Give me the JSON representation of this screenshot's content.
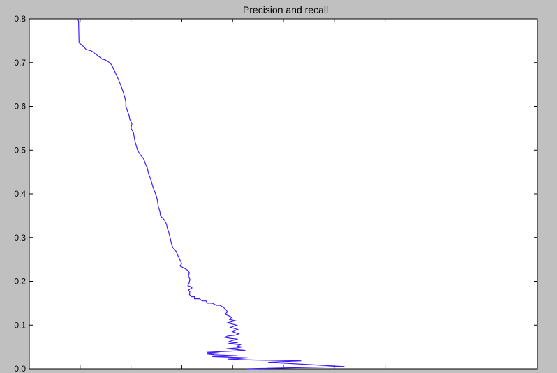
{
  "chart_data": {
    "type": "line",
    "title": "Precision and recall",
    "xlabel": "",
    "ylabel": "",
    "xlim": [
      0,
      1
    ],
    "ylim": [
      0,
      0.8
    ],
    "x_ticks": [
      0.1,
      0.2,
      0.3,
      0.4,
      0.5,
      0.6,
      0.7
    ],
    "y_ticks": [
      0.0,
      0.1,
      0.2,
      0.3,
      0.4,
      0.5,
      0.6,
      0.7,
      0.8
    ],
    "y_tick_labels": [
      "0.0",
      "0.1",
      "0.2",
      "0.3",
      "0.4",
      "0.5",
      "0.6",
      "0.7",
      "0.8"
    ],
    "grid": false,
    "line_color": "#3b1cff",
    "series": [
      {
        "x": [
          0.095,
          0.097,
          0.098,
          0.104,
          0.112,
          0.122,
          0.13,
          0.138,
          0.143,
          0.15,
          0.158,
          0.162,
          0.166,
          0.17,
          0.176,
          0.181,
          0.185,
          0.188,
          0.19,
          0.19,
          0.193,
          0.196,
          0.198,
          0.202,
          0.2,
          0.205,
          0.208,
          0.213,
          0.218,
          0.225,
          0.228,
          0.232,
          0.235,
          0.24,
          0.242,
          0.245,
          0.25,
          0.252,
          0.254,
          0.257,
          0.258,
          0.262,
          0.266,
          0.27,
          0.272,
          0.275,
          0.278,
          0.28,
          0.282,
          0.288,
          0.292,
          0.296,
          0.3,
          0.296,
          0.305,
          0.312,
          0.315,
          0.313,
          0.316,
          0.315,
          0.312,
          0.317,
          0.32,
          0.313,
          0.316,
          0.315,
          0.319,
          0.325,
          0.325,
          0.335,
          0.34,
          0.348,
          0.35,
          0.36,
          0.368,
          0.375,
          0.382,
          0.387,
          0.39,
          0.385,
          0.395,
          0.398,
          0.394,
          0.405,
          0.39,
          0.408,
          0.396,
          0.41,
          0.4,
          0.412,
          0.405,
          0.39,
          0.385,
          0.395,
          0.41,
          0.4,
          0.392,
          0.41,
          0.392,
          0.415,
          0.41,
          0.418,
          0.41,
          0.388,
          0.4,
          0.425,
          0.39,
          0.35,
          0.375,
          0.35,
          0.365,
          0.41,
          0.36,
          0.43,
          0.41,
          0.39,
          0.44,
          0.535,
          0.47,
          0.62,
          0.428
        ],
        "y": [
          0.8,
          0.795,
          0.745,
          0.74,
          0.73,
          0.727,
          0.72,
          0.713,
          0.708,
          0.706,
          0.7,
          0.695,
          0.685,
          0.675,
          0.66,
          0.645,
          0.632,
          0.62,
          0.61,
          0.6,
          0.59,
          0.58,
          0.57,
          0.56,
          0.55,
          0.54,
          0.52,
          0.5,
          0.49,
          0.48,
          0.47,
          0.46,
          0.445,
          0.43,
          0.42,
          0.41,
          0.395,
          0.385,
          0.37,
          0.36,
          0.35,
          0.345,
          0.34,
          0.33,
          0.32,
          0.31,
          0.295,
          0.285,
          0.278,
          0.27,
          0.26,
          0.25,
          0.24,
          0.235,
          0.23,
          0.225,
          0.22,
          0.212,
          0.205,
          0.198,
          0.19,
          0.188,
          0.185,
          0.18,
          0.176,
          0.17,
          0.165,
          0.165,
          0.16,
          0.16,
          0.155,
          0.155,
          0.15,
          0.15,
          0.145,
          0.145,
          0.14,
          0.135,
          0.13,
          0.125,
          0.12,
          0.118,
          0.113,
          0.11,
          0.105,
          0.1,
          0.095,
          0.09,
          0.085,
          0.08,
          0.077,
          0.075,
          0.072,
          0.07,
          0.068,
          0.065,
          0.062,
          0.06,
          0.058,
          0.055,
          0.052,
          0.05,
          0.048,
          0.046,
          0.045,
          0.042,
          0.04,
          0.038,
          0.036,
          0.034,
          0.032,
          0.03,
          0.028,
          0.025,
          0.023,
          0.022,
          0.02,
          0.018,
          0.015,
          0.005,
          0.0
        ]
      }
    ]
  }
}
